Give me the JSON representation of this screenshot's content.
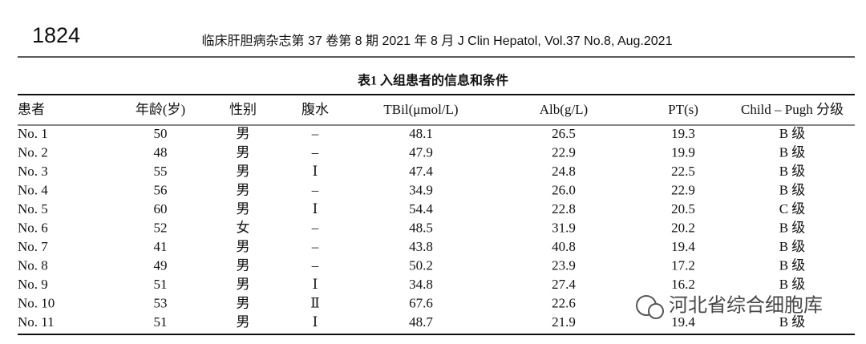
{
  "header": {
    "page_number": "1824",
    "journal": "临床肝胆病杂志第 37 卷第 8 期 2021 年 8 月   J Clin Hepatol, Vol.37 No.8, Aug.2021"
  },
  "table": {
    "title": "表1   入组患者的信息和条件",
    "columns": [
      "患者",
      "年龄(岁)",
      "性别",
      "腹水",
      "TBil(μmol/L)",
      "Alb(g/L)",
      "PT(s)",
      "Child – Pugh 分级"
    ],
    "rows": [
      [
        "No. 1",
        "50",
        "男",
        "–",
        "48.1",
        "26.5",
        "19.3",
        "B 级"
      ],
      [
        "No. 2",
        "48",
        "男",
        "–",
        "47.9",
        "22.9",
        "19.9",
        "B 级"
      ],
      [
        "No. 3",
        "55",
        "男",
        "Ⅰ",
        "47.4",
        "24.8",
        "22.5",
        "B 级"
      ],
      [
        "No. 4",
        "56",
        "男",
        "–",
        "34.9",
        "26.0",
        "22.9",
        "B 级"
      ],
      [
        "No. 5",
        "60",
        "男",
        "Ⅰ",
        "54.4",
        "22.8",
        "20.5",
        "C 级"
      ],
      [
        "No. 6",
        "52",
        "女",
        "–",
        "48.5",
        "31.9",
        "20.2",
        "B 级"
      ],
      [
        "No. 7",
        "41",
        "男",
        "–",
        "43.8",
        "40.8",
        "19.4",
        "B 级"
      ],
      [
        "No. 8",
        "49",
        "男",
        "–",
        "50.2",
        "23.9",
        "17.2",
        "B 级"
      ],
      [
        "No. 9",
        "51",
        "男",
        "Ⅰ",
        "34.8",
        "27.4",
        "16.2",
        "B 级"
      ],
      [
        "No. 10",
        "53",
        "男",
        "Ⅱ",
        "67.6",
        "22.6",
        null,
        null
      ],
      [
        "No. 11",
        "51",
        "男",
        "Ⅰ",
        "48.7",
        "21.9",
        "19.4",
        "B 级"
      ]
    ]
  },
  "watermark": "河北省综合细胞库"
}
